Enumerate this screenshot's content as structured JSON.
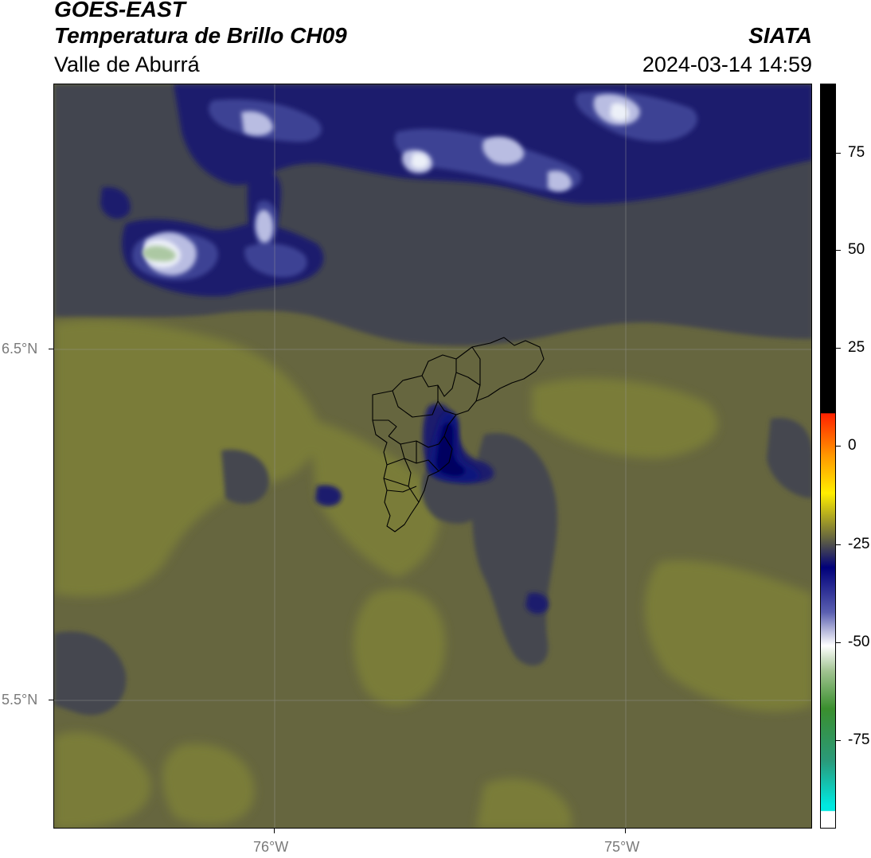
{
  "header": {
    "satellite": "GOES-EAST",
    "product": "Temperatura de Brillo CH09",
    "region": "Valle de Aburrá",
    "institution": "SIATA",
    "datetime": "2024-03-14 14:59"
  },
  "axes": {
    "lat_ticks": [
      {
        "label": "6.5°N",
        "value": 6.5
      },
      {
        "label": "5.5°N",
        "value": 5.5
      }
    ],
    "lon_ticks": [
      {
        "label": "76°W",
        "value": -76.0
      },
      {
        "label": "75°W",
        "value": -75.0
      }
    ],
    "gridlines": true
  },
  "colorbar": {
    "tick_labels": [
      "75",
      "50",
      "25",
      "0",
      "-25",
      "-50",
      "-75"
    ],
    "colors": {
      "warm": "#000000",
      "red": "#ff2200",
      "orange": "#ff9900",
      "yellow": "#ffee00",
      "olive": "#66663f",
      "navy": "#00007a",
      "white": "#ffffff",
      "green": "#3a8f2e",
      "cyan": "#00e8e0"
    }
  },
  "map_colors": {
    "background_olive": "#66663f",
    "dark_gray": "#45474f",
    "yellowish": "#7f8238",
    "cloud_navy": "#151777",
    "cloud_white": "#e8ecf6",
    "border_lines": "#000000"
  }
}
